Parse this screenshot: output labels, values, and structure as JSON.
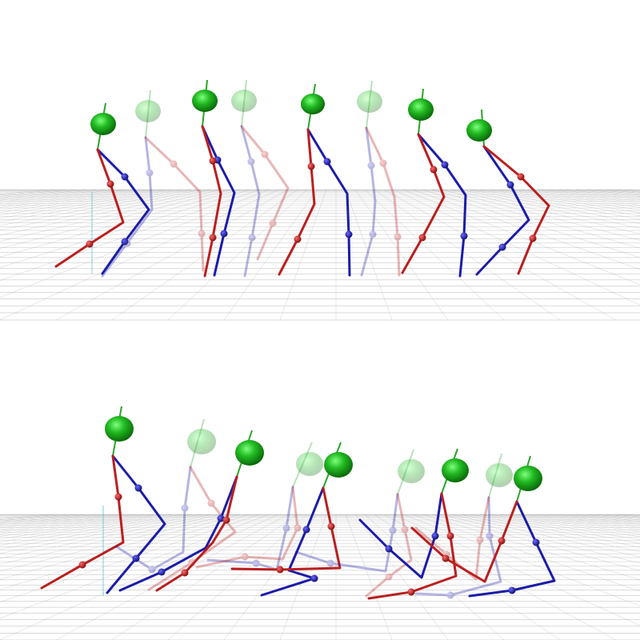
{
  "scene": {
    "panels": [
      {
        "name": "top-panel",
        "frames": [
          {
            "faded": false,
            "head": [
              129,
              155,
              14
            ],
            "neck": [
              127,
              180
            ],
            "pelvis": [
              122,
              187
            ],
            "rleg": [
              [
                122,
                187
              ],
              [
                138,
                230
              ],
              [
                154,
                278
              ],
              [
                112,
                305
              ],
              [
                70,
                333
              ]
            ],
            "bleg": [
              [
                122,
                187
              ],
              [
                156,
                221
              ],
              [
                186,
                262
              ],
              [
                156,
                302
              ],
              [
                128,
                342
              ]
            ]
          },
          {
            "faded": true,
            "head": [
              185,
              139,
              14
            ],
            "neck": [
              184,
              164
            ],
            "pelvis": [
              182,
              172
            ],
            "rleg": [
              [
                182,
                172
              ],
              [
                217,
                205
              ],
              [
                250,
                240
              ],
              [
                252,
                292
              ],
              [
                254,
                338
              ]
            ],
            "bleg": [
              [
                182,
                172
              ],
              [
                187,
                216
              ],
              [
                190,
                262
              ],
              [
                159,
                304
              ],
              [
                128,
                345
              ]
            ]
          },
          {
            "faded": false,
            "head": [
              256,
              126,
              14
            ],
            "neck": [
              255,
              150
            ],
            "pelvis": [
              253,
              158
            ],
            "rleg": [
              [
                253,
                158
              ],
              [
                266,
                201
              ],
              [
                276,
                242
              ],
              [
                266,
                297
              ],
              [
                256,
                345
              ]
            ],
            "bleg": [
              [
                253,
                158
              ],
              [
                272,
                200
              ],
              [
                293,
                241
              ],
              [
                280,
                292
              ],
              [
                268,
                344
              ]
            ]
          },
          {
            "faded": true,
            "head": [
              305,
              126,
              14
            ],
            "neck": [
              304,
              150
            ],
            "pelvis": [
              302,
              158
            ],
            "rleg": [
              [
                302,
                158
              ],
              [
                331,
                193
              ],
              [
                360,
                235
              ],
              [
                341,
                279
              ],
              [
                322,
                324
              ]
            ],
            "bleg": [
              [
                302,
                158
              ],
              [
                314,
                202
              ],
              [
                324,
                243
              ],
              [
                315,
                297
              ],
              [
                306,
                345
              ]
            ]
          },
          {
            "faded": false,
            "head": [
              391,
              130,
              13
            ],
            "neck": [
              389,
              155
            ],
            "pelvis": [
              385,
              162
            ],
            "rleg": [
              [
                385,
                162
              ],
              [
                389,
                208
              ],
              [
                393,
                255
              ],
              [
                372,
                299
              ],
              [
                349,
                343
              ]
            ],
            "bleg": [
              [
                385,
                162
              ],
              [
                409,
                202
              ],
              [
                434,
                242
              ],
              [
                436,
                293
              ],
              [
                437,
                344
              ]
            ]
          },
          {
            "faded": true,
            "head": [
              462,
              127,
              14
            ],
            "neck": [
              461,
              152
            ],
            "pelvis": [
              458,
              160
            ],
            "rleg": [
              [
                458,
                160
              ],
              [
                479,
                204
              ],
              [
                493,
                246
              ],
              [
                497,
                296
              ],
              [
                499,
                344
              ]
            ],
            "bleg": [
              [
                458,
                160
              ],
              [
                464,
                207
              ],
              [
                469,
                252
              ],
              [
                466,
                293
              ],
              [
                452,
                344
              ]
            ]
          },
          {
            "faded": false,
            "head": [
              526,
              137,
              14
            ],
            "neck": [
              525,
              162
            ],
            "pelvis": [
              523,
              168
            ],
            "rleg": [
              [
                523,
                168
              ],
              [
                542,
                212
              ],
              [
                555,
                246
              ],
              [
                528,
                297
              ],
              [
                503,
                341
              ]
            ],
            "bleg": [
              [
                523,
                168
              ],
              [
                556,
                206
              ],
              [
                582,
                244
              ],
              [
                580,
                295
              ],
              [
                575,
                345
              ]
            ]
          },
          {
            "faded": false,
            "head": [
              599,
              163,
              14
            ],
            "neck": [
              601,
              188
            ],
            "pelvis": [
              605,
              183
            ],
            "rleg": [
              [
                605,
                183
              ],
              [
                651,
                221
              ],
              [
                686,
                257
              ],
              [
                666,
                298
              ],
              [
                648,
                342
              ]
            ],
            "bleg": [
              [
                605,
                183
              ],
              [
                638,
                231
              ],
              [
                661,
                275
              ],
              [
                628,
                309
              ],
              [
                596,
                343
              ]
            ]
          }
        ]
      },
      {
        "name": "bottom-panel",
        "frames": [
          {
            "faded": false,
            "head": [
              149,
              536,
              16
            ],
            "neck": [
              147,
              565
            ],
            "pelvis": [
              141,
              570
            ],
            "rleg": [
              [
                141,
                570
              ],
              [
                148,
                621
              ],
              [
                154,
                678
              ],
              [
                103,
                706
              ],
              [
                52,
                735
              ]
            ],
            "bleg": [
              [
                141,
                570
              ],
              [
                173,
                610
              ],
              [
                206,
                655
              ],
              [
                170,
                698
              ],
              [
                134,
                741
              ]
            ]
          },
          {
            "faded": true,
            "head": [
              252,
              552,
              16
            ],
            "neck": [
              250,
              578
            ],
            "pelvis": [
              238,
              584
            ],
            "rleg": [
              [
                238,
                584
              ],
              [
                264,
                629
              ],
              [
                294,
                665
              ],
              [
                240,
                703
              ],
              [
                186,
                737
              ]
            ],
            "bleg": [
              [
                238,
                584
              ],
              [
                231,
                635
              ],
              [
                229,
                690
              ],
              [
                190,
                712
              ],
              [
                145,
                683
              ]
            ]
          },
          {
            "faded": false,
            "head": [
              312,
              566,
              16
            ],
            "neck": [
              310,
              592
            ],
            "pelvis": [
              296,
              596
            ],
            "rleg": [
              [
                296,
                596
              ],
              [
                283,
                650
              ],
              [
                266,
                678
              ],
              [
                231,
                716
              ],
              [
                196,
                738
              ]
            ],
            "bleg": [
              [
                296,
                596
              ],
              [
                276,
                648
              ],
              [
                257,
                685
              ],
              [
                202,
                715
              ],
              [
                150,
                738
              ]
            ]
          },
          {
            "faded": true,
            "head": [
              387,
              580,
              15
            ],
            "neck": [
              384,
              605
            ],
            "pelvis": [
              366,
              609
            ],
            "rleg": [
              [
                366,
                609
              ],
              [
                372,
                660
              ],
              [
                353,
                699
              ],
              [
                306,
                696
              ],
              [
                246,
                709
              ]
            ],
            "bleg": [
              [
                366,
                609
              ],
              [
                358,
                660
              ],
              [
                346,
                712
              ],
              [
                320,
                704
              ],
              [
                260,
                700
              ]
            ]
          },
          {
            "faded": false,
            "head": [
              423,
              581,
              16
            ],
            "neck": [
              420,
              606
            ],
            "pelvis": [
              404,
              610
            ],
            "rleg": [
              [
                404,
                610
              ],
              [
                414,
                658
              ],
              [
                425,
                710
              ],
              [
                350,
                712
              ],
              [
                290,
                711
              ]
            ],
            "bleg": [
              [
                404,
                610
              ],
              [
                383,
                662
              ],
              [
                361,
                713
              ],
              [
                393,
                723
              ],
              [
                327,
                744
              ]
            ]
          },
          {
            "faded": true,
            "head": [
              514,
              589,
              15
            ],
            "neck": [
              511,
              612
            ],
            "pelvis": [
              497,
              618
            ],
            "rleg": [
              [
                497,
                618
              ],
              [
                506,
                662
              ],
              [
                514,
                700
              ],
              [
                486,
                721
              ],
              [
                458,
                745
              ]
            ],
            "bleg": [
              [
                497,
                618
              ],
              [
                491,
                663
              ],
              [
                482,
                714
              ],
              [
                413,
                704
              ],
              [
                370,
                690
              ]
            ]
          },
          {
            "faded": false,
            "head": [
              569,
              588,
              15
            ],
            "neck": [
              566,
              612
            ],
            "pelvis": [
              552,
              617
            ],
            "rleg": [
              [
                552,
                617
              ],
              [
                563,
                670
              ],
              [
                570,
                720
              ],
              [
                514,
                740
              ],
              [
                461,
                748
              ]
            ],
            "bleg": [
              [
                552,
                617
              ],
              [
                544,
                670
              ],
              [
                527,
                722
              ],
              [
                486,
                686
              ],
              [
                450,
                650
              ]
            ]
          },
          {
            "faded": true,
            "head": [
              624,
              594,
              15
            ],
            "neck": [
              621,
              617
            ],
            "pelvis": [
              611,
              622
            ],
            "rleg": [
              [
                611,
                622
              ],
              [
                600,
                675
              ],
              [
                595,
                724
              ],
              [
                558,
                693
              ],
              [
                520,
                660
              ]
            ],
            "bleg": [
              [
                611,
                622
              ],
              [
                612,
                670
              ],
              [
                626,
                727
              ],
              [
                563,
                744
              ],
              [
                520,
                742
              ]
            ]
          },
          {
            "faded": false,
            "head": [
              660,
              598,
              16
            ],
            "neck": [
              657,
              621
            ],
            "pelvis": [
              646,
              627
            ],
            "rleg": [
              [
                646,
                627
              ],
              [
                627,
                676
              ],
              [
                606,
                727
              ],
              [
                557,
                698
              ],
              [
                515,
                660
              ]
            ],
            "bleg": [
              [
                646,
                627
              ],
              [
                670,
                678
              ],
              [
                693,
                726
              ],
              [
                640,
                738
              ],
              [
                587,
                745
              ]
            ]
          }
        ]
      }
    ],
    "colors": {
      "head": "#22bb22",
      "head_highlight": "#7dff7d",
      "spine": "#2aa52a",
      "left_leg": "#bb1f1f",
      "right_leg": "#1c1ca8",
      "grid": "#9a9a9a"
    },
    "icons": {
      "head": "sphere-icon",
      "joint": "joint-dot-icon"
    }
  }
}
